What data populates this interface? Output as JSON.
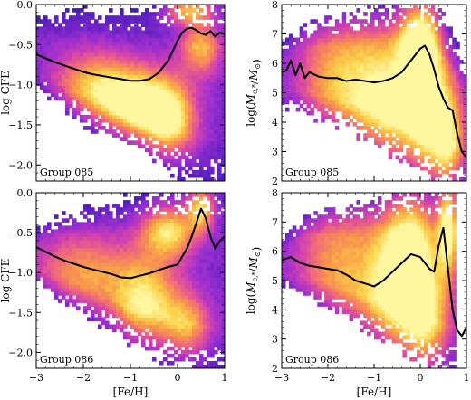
{
  "chart_data": [
    {
      "type": "heatmap",
      "panel": "top-left",
      "group_label": "Group 085",
      "xlabel": "",
      "ylabel": "log CFE",
      "xlim": [
        -3,
        1
      ],
      "ylim": [
        -2.2,
        0.0
      ],
      "xticks": [
        -3,
        -2,
        -1,
        0,
        1
      ],
      "xtick_labels": [
        "",
        "",
        "",
        "",
        ""
      ],
      "yticks": [
        -2.0,
        -1.5,
        -1.0,
        -0.5,
        0.0
      ],
      "ytick_labels": [
        "−2.0",
        "−1.5",
        "−1.0",
        "−0.5",
        "0.0"
      ],
      "median": {
        "x": [
          -3.0,
          -2.8,
          -2.6,
          -2.4,
          -2.2,
          -2.0,
          -1.8,
          -1.6,
          -1.4,
          -1.2,
          -1.0,
          -0.8,
          -0.6,
          -0.4,
          -0.2,
          -0.1,
          0.0,
          0.1,
          0.2,
          0.3,
          0.4,
          0.5,
          0.6,
          0.7,
          0.8,
          0.9,
          1.0
        ],
        "y": [
          -0.62,
          -0.67,
          -0.72,
          -0.76,
          -0.8,
          -0.84,
          -0.87,
          -0.89,
          -0.91,
          -0.93,
          -0.95,
          -0.95,
          -0.93,
          -0.85,
          -0.7,
          -0.58,
          -0.45,
          -0.35,
          -0.3,
          -0.29,
          -0.32,
          -0.36,
          -0.38,
          -0.33,
          -0.4,
          -0.35,
          -0.37
        ]
      },
      "density": {
        "blobs": [
          {
            "x": 0.25,
            "y": -0.05,
            "amp": 1.0,
            "sx": 0.35,
            "sy": 0.12
          },
          {
            "x": -0.9,
            "y": -1.25,
            "amp": 0.85,
            "sx": 0.55,
            "sy": 0.3
          },
          {
            "x": -0.2,
            "y": -1.45,
            "amp": 0.75,
            "sx": 0.4,
            "sy": 0.35
          },
          {
            "x": -1.8,
            "y": -1.0,
            "amp": 0.55,
            "sx": 0.6,
            "sy": 0.3
          },
          {
            "x": 0.5,
            "y": -0.5,
            "amp": 0.6,
            "sx": 0.3,
            "sy": 0.25
          }
        ],
        "min_x": -3.0,
        "max_x": 1.0,
        "bottom_edge": [
          [
            -3.0,
            -1.0
          ],
          [
            -2.0,
            -1.45
          ],
          [
            -1.0,
            -1.75
          ],
          [
            0.0,
            -2.05
          ],
          [
            0.5,
            -2.2
          ],
          [
            1.0,
            -2.2
          ]
        ],
        "top_edge": [
          [
            -3.0,
            -0.2
          ],
          [
            -2.0,
            -0.1
          ],
          [
            -1.0,
            -0.15
          ],
          [
            0.0,
            0.0
          ],
          [
            1.0,
            0.0
          ]
        ]
      }
    },
    {
      "type": "heatmap",
      "panel": "top-right",
      "group_label": "Group 085",
      "xlabel": "",
      "ylabel": "log(M_c,*/M_⊙)",
      "xlim": [
        -3,
        1
      ],
      "ylim": [
        2,
        8
      ],
      "xticks": [
        -3,
        -2,
        -1,
        0,
        1
      ],
      "xtick_labels": [
        "",
        "",
        "",
        "",
        ""
      ],
      "yticks": [
        2,
        3,
        4,
        5,
        6,
        7,
        8
      ],
      "ytick_labels": [
        "2",
        "3",
        "4",
        "5",
        "6",
        "7",
        "8"
      ],
      "median": {
        "x": [
          -3.0,
          -2.9,
          -2.8,
          -2.7,
          -2.6,
          -2.5,
          -2.4,
          -2.2,
          -2.0,
          -1.8,
          -1.6,
          -1.4,
          -1.2,
          -1.0,
          -0.8,
          -0.6,
          -0.4,
          -0.2,
          0.0,
          0.1,
          0.2,
          0.3,
          0.4,
          0.5,
          0.6,
          0.7,
          0.8,
          0.9,
          1.0
        ],
        "y": [
          5.7,
          5.75,
          6.1,
          5.6,
          6.0,
          5.5,
          5.7,
          5.55,
          5.5,
          5.5,
          5.4,
          5.45,
          5.4,
          5.35,
          5.4,
          5.5,
          5.7,
          6.1,
          6.5,
          6.6,
          6.3,
          5.8,
          5.2,
          4.8,
          4.5,
          4.4,
          3.6,
          3.0,
          2.8
        ]
      },
      "density": {
        "blobs": [
          {
            "x": 0.0,
            "y": 6.9,
            "amp": 1.0,
            "sx": 0.3,
            "sy": 0.5
          },
          {
            "x": -0.7,
            "y": 4.4,
            "amp": 0.8,
            "sx": 0.55,
            "sy": 0.7
          },
          {
            "x": 0.2,
            "y": 4.0,
            "amp": 0.7,
            "sx": 0.35,
            "sy": 0.6
          },
          {
            "x": -1.8,
            "y": 5.3,
            "amp": 0.55,
            "sx": 0.6,
            "sy": 0.7
          },
          {
            "x": 0.6,
            "y": 3.2,
            "amp": 0.6,
            "sx": 0.25,
            "sy": 0.5
          }
        ],
        "min_x": -3.0,
        "max_x": 1.0,
        "bottom_edge": [
          [
            -3.0,
            4.6
          ],
          [
            -2.0,
            4.1
          ],
          [
            -1.0,
            3.4
          ],
          [
            0.0,
            2.4
          ],
          [
            0.5,
            2.0
          ],
          [
            1.0,
            2.0
          ]
        ],
        "top_edge": [
          [
            -3.0,
            6.6
          ],
          [
            -2.5,
            7.2
          ],
          [
            -1.5,
            7.6
          ],
          [
            -0.5,
            7.9
          ],
          [
            0.3,
            8.0
          ],
          [
            0.7,
            6.8
          ],
          [
            1.0,
            6.0
          ]
        ]
      }
    },
    {
      "type": "heatmap",
      "panel": "bottom-left",
      "group_label": "Group 086",
      "xlabel": "[Fe/H]",
      "ylabel": "log CFE",
      "xlim": [
        -3,
        1
      ],
      "ylim": [
        -2.2,
        0.0
      ],
      "xticks": [
        -3,
        -2,
        -1,
        0,
        1
      ],
      "xtick_labels": [
        "−3",
        "−2",
        "−1",
        "0",
        "1"
      ],
      "yticks": [
        -2.0,
        -1.5,
        -1.0,
        -0.5,
        0.0
      ],
      "ytick_labels": [
        "−2.0",
        "−1.5",
        "−1.0",
        "−0.5",
        "0.0"
      ],
      "median": {
        "x": [
          -3.0,
          -2.8,
          -2.6,
          -2.4,
          -2.2,
          -2.0,
          -1.8,
          -1.6,
          -1.4,
          -1.2,
          -1.0,
          -0.8,
          -0.6,
          -0.4,
          -0.2,
          0.0,
          0.1,
          0.2,
          0.3,
          0.4,
          0.5,
          0.6,
          0.7,
          0.8,
          0.9,
          1.0
        ],
        "y": [
          -0.68,
          -0.74,
          -0.8,
          -0.85,
          -0.89,
          -0.93,
          -0.96,
          -0.99,
          -1.02,
          -1.06,
          -1.07,
          -1.04,
          -1.01,
          -0.97,
          -0.93,
          -0.9,
          -0.8,
          -0.7,
          -0.55,
          -0.38,
          -0.2,
          -0.32,
          -0.55,
          -0.7,
          -0.6,
          -0.55
        ]
      },
      "density": {
        "blobs": [
          {
            "x": 0.5,
            "y": -0.15,
            "amp": 1.0,
            "sx": 0.2,
            "sy": 0.2
          },
          {
            "x": -0.2,
            "y": -0.45,
            "amp": 0.75,
            "sx": 0.4,
            "sy": 0.25
          },
          {
            "x": -0.7,
            "y": -1.4,
            "amp": 0.75,
            "sx": 0.5,
            "sy": 0.4
          },
          {
            "x": -2.0,
            "y": -1.0,
            "amp": 0.5,
            "sx": 0.7,
            "sy": 0.35
          },
          {
            "x": 0.2,
            "y": -1.7,
            "amp": 0.55,
            "sx": 0.35,
            "sy": 0.3
          }
        ],
        "min_x": -3.0,
        "max_x": 1.0,
        "bottom_edge": [
          [
            -3.0,
            -1.1
          ],
          [
            -2.0,
            -1.5
          ],
          [
            -1.0,
            -1.85
          ],
          [
            0.0,
            -2.1
          ],
          [
            0.5,
            -2.2
          ],
          [
            1.0,
            -2.2
          ]
        ],
        "top_edge": [
          [
            -3.0,
            -0.45
          ],
          [
            -2.0,
            -0.2
          ],
          [
            -1.0,
            -0.1
          ],
          [
            0.0,
            0.0
          ],
          [
            1.0,
            0.0
          ]
        ]
      }
    },
    {
      "type": "heatmap",
      "panel": "bottom-right",
      "group_label": "Group 086",
      "xlabel": "[Fe/H]",
      "ylabel": "log(M_c,*/M_⊙)",
      "xlim": [
        -3,
        1
      ],
      "ylim": [
        2,
        8
      ],
      "xticks": [
        -3,
        -2,
        -1,
        0,
        1
      ],
      "xtick_labels": [
        "−3",
        "−2",
        "−1",
        "0",
        "1"
      ],
      "yticks": [
        2,
        3,
        4,
        5,
        6,
        7,
        8
      ],
      "ytick_labels": [
        "2",
        "3",
        "4",
        "5",
        "6",
        "7",
        "8"
      ],
      "median": {
        "x": [
          -3.0,
          -2.8,
          -2.6,
          -2.4,
          -2.2,
          -2.0,
          -1.8,
          -1.6,
          -1.4,
          -1.2,
          -1.0,
          -0.8,
          -0.6,
          -0.4,
          -0.2,
          0.0,
          0.2,
          0.3,
          0.4,
          0.5,
          0.6,
          0.7,
          0.8,
          0.9,
          1.0
        ],
        "y": [
          5.7,
          5.8,
          5.6,
          5.5,
          5.45,
          5.4,
          5.35,
          5.2,
          5.0,
          4.9,
          4.8,
          5.0,
          5.3,
          5.6,
          5.9,
          5.8,
          5.4,
          5.3,
          6.2,
          6.8,
          5.4,
          4.0,
          3.3,
          3.1,
          3.4
        ]
      },
      "density": {
        "blobs": [
          {
            "x": 0.6,
            "y": 7.3,
            "amp": 1.0,
            "sx": 0.15,
            "sy": 0.5
          },
          {
            "x": -0.6,
            "y": 4.3,
            "amp": 0.75,
            "sx": 0.5,
            "sy": 0.7
          },
          {
            "x": 0.1,
            "y": 3.6,
            "amp": 0.7,
            "sx": 0.35,
            "sy": 0.6
          },
          {
            "x": -1.8,
            "y": 5.4,
            "amp": 0.5,
            "sx": 0.6,
            "sy": 0.8
          },
          {
            "x": -0.2,
            "y": 6.8,
            "amp": 0.6,
            "sx": 0.4,
            "sy": 0.6
          }
        ],
        "min_x": -3.0,
        "max_x": 0.75,
        "bottom_edge": [
          [
            -3.0,
            4.8
          ],
          [
            -2.0,
            4.2
          ],
          [
            -1.0,
            3.3
          ],
          [
            0.0,
            2.4
          ],
          [
            0.5,
            2.0
          ],
          [
            0.75,
            2.0
          ]
        ],
        "top_edge": [
          [
            -3.0,
            6.5
          ],
          [
            -2.5,
            7.1
          ],
          [
            -1.5,
            7.5
          ],
          [
            -0.5,
            7.9
          ],
          [
            0.3,
            8.0
          ],
          [
            0.75,
            8.0
          ]
        ]
      }
    }
  ],
  "colors": {
    "background": "#ffffff",
    "median_line": "#000000",
    "colormap": [
      "#2a1a8a",
      "#5a1fc0",
      "#9a2fd0",
      "#d040b0",
      "#f06a7a",
      "#f89a4a",
      "#fcd24a",
      "#fff7a0"
    ]
  }
}
